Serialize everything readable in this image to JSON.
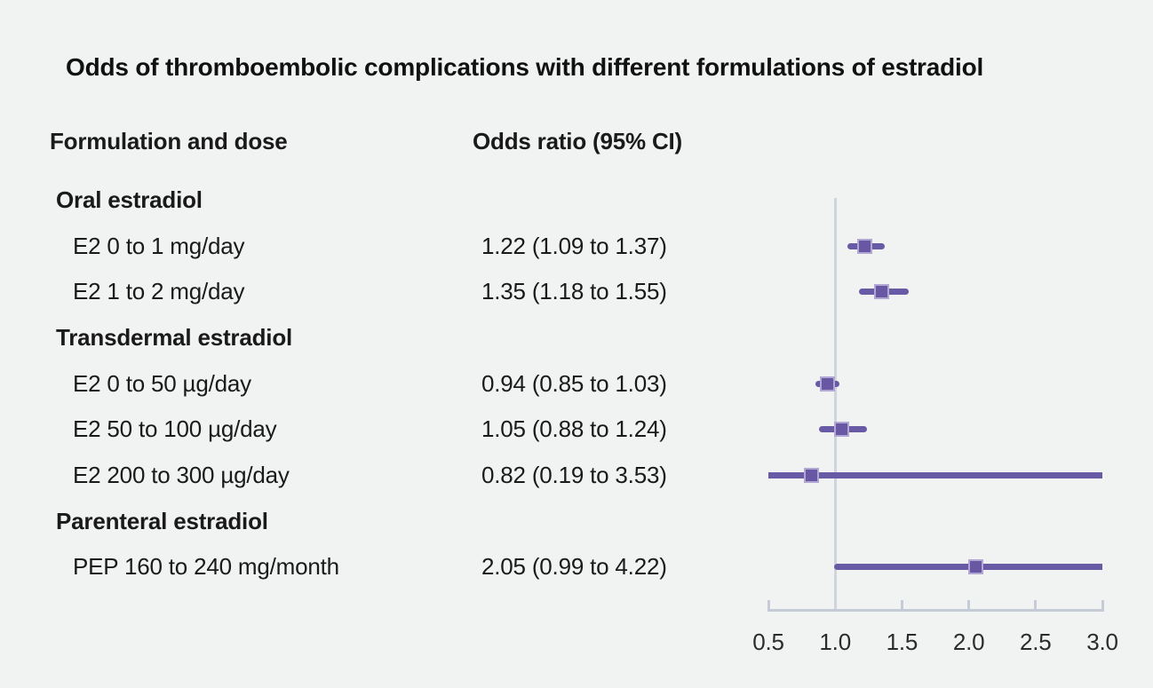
{
  "chart_data": {
    "type": "forest",
    "title": "Odds of thromboembolic complications with different formulations of estradiol",
    "col1_header": "Formulation and dose",
    "col2_header": "Odds ratio (95% CI)",
    "axis": {
      "min": 0.5,
      "max": 3.0,
      "ticks": [
        0.5,
        1.0,
        1.5,
        2.0,
        2.5,
        3.0
      ],
      "tick_labels": [
        "0.5",
        "1.0",
        "1.5",
        "2.0",
        "2.5",
        "3.0"
      ],
      "reference_line": 1.0
    },
    "rows": [
      {
        "label": "Oral estradiol",
        "type": "group",
        "or_text": ""
      },
      {
        "label": "E2 0 to 1 mg/day",
        "type": "item",
        "or_text": "1.22 (1.09 to 1.37)",
        "or": 1.22,
        "lo": 1.09,
        "hi": 1.37
      },
      {
        "label": "E2 1 to 2 mg/day",
        "type": "item",
        "or_text": "1.35 (1.18 to 1.55)",
        "or": 1.35,
        "lo": 1.18,
        "hi": 1.55
      },
      {
        "label": "Transdermal estradiol",
        "type": "group",
        "or_text": ""
      },
      {
        "label": "E2 0 to 50 µg/day",
        "type": "item",
        "or_text": "0.94 (0.85 to 1.03)",
        "or": 0.94,
        "lo": 0.85,
        "hi": 1.03
      },
      {
        "label": "E2 50 to 100 µg/day",
        "type": "item",
        "or_text": "1.05 (0.88 to 1.24)",
        "or": 1.05,
        "lo": 0.88,
        "hi": 1.24
      },
      {
        "label": "E2 200 to 300 µg/day",
        "type": "item",
        "or_text": "0.82 (0.19 to 3.53)",
        "or": 0.82,
        "lo": 0.19,
        "hi": 3.53
      },
      {
        "label": "Parenteral estradiol",
        "type": "group",
        "or_text": ""
      },
      {
        "label": "PEP 160 to 240 mg/month",
        "type": "item",
        "or_text": "2.05 (0.99 to 4.22)",
        "or": 2.05,
        "lo": 0.99,
        "hi": 4.22
      }
    ],
    "colors": {
      "background": "#f1f2f2",
      "text": "#1a1a1a",
      "ci_line": "#695aa5",
      "marker_fill": "#6858a4",
      "marker_border": "#b2a7d4",
      "reference_line": "#cfd5dd",
      "axis_line": "#c6ccd6"
    },
    "legend_position": "none",
    "grid": false
  }
}
